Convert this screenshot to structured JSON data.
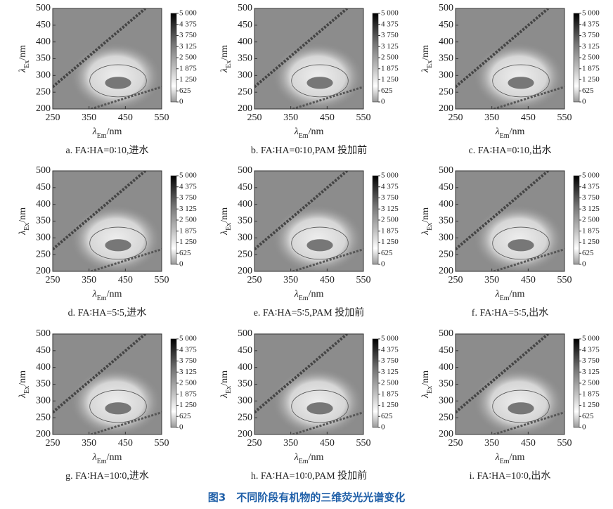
{
  "figure_caption": "图3　不同阶段有机物的三维荧光光谱变化",
  "chart_data": [
    {
      "type": "heatmap",
      "caption": "a. FA∶HA=0∶10,进水",
      "x_label": {
        "symbol": "λ",
        "sub": "Em",
        "unit": "/nm"
      },
      "y_label": {
        "symbol": "λ",
        "sub": "Ex",
        "unit": "/nm"
      },
      "xlim": [
        250,
        550
      ],
      "xticks": [
        250,
        350,
        450,
        550
      ],
      "ylim": [
        200,
        500
      ],
      "yticks": [
        200,
        250,
        300,
        350,
        400,
        450,
        500
      ],
      "clim": [
        0,
        5000
      ],
      "cticks": [
        {
          "value": 5000,
          "label": "5 000"
        },
        {
          "value": 4375,
          "label": "4 375"
        },
        {
          "value": 3750,
          "label": "3 750"
        },
        {
          "value": 3125,
          "label": "3 125"
        },
        {
          "value": 2500,
          "label": "2 500"
        },
        {
          "value": 1875,
          "label": "1 875"
        },
        {
          "value": 1250,
          "label": "1 250"
        },
        625,
        0
      ]
    },
    {
      "type": "heatmap",
      "caption": "b. FA∶HA=0∶10,PAM 投加前",
      "x_label": {
        "symbol": "λ",
        "sub": "Em",
        "unit": "/nm"
      },
      "y_label": {
        "symbol": "λ",
        "sub": "Ex",
        "unit": "/nm"
      },
      "xlim": [
        250,
        550
      ],
      "xticks": [
        250,
        350,
        450,
        550
      ],
      "ylim": [
        200,
        500
      ],
      "yticks": [
        200,
        250,
        300,
        350,
        400,
        450,
        500
      ],
      "clim": [
        0,
        5000
      ],
      "cticks": [
        {
          "value": 5000,
          "label": "5 000"
        },
        {
          "value": 4375,
          "label": "4 375"
        },
        {
          "value": 3750,
          "label": "3 750"
        },
        {
          "value": 3125,
          "label": "3 125"
        },
        {
          "value": 2500,
          "label": "2 500"
        },
        {
          "value": 1875,
          "label": "1 875"
        },
        {
          "value": 1250,
          "label": "1 250"
        },
        625,
        0
      ]
    },
    {
      "type": "heatmap",
      "caption": "c. FA∶HA=0∶10,出水",
      "x_label": {
        "symbol": "λ",
        "sub": "Em",
        "unit": "/nm"
      },
      "y_label": {
        "symbol": "λ",
        "sub": "Ex",
        "unit": "/nm"
      },
      "xlim": [
        250,
        550
      ],
      "xticks": [
        250,
        350,
        450,
        550
      ],
      "ylim": [
        200,
        500
      ],
      "yticks": [
        200,
        250,
        300,
        350,
        400,
        450,
        500
      ],
      "clim": [
        0,
        5000
      ],
      "cticks": [
        {
          "value": 5000,
          "label": "5 000"
        },
        {
          "value": 4375,
          "label": "4 375"
        },
        {
          "value": 3750,
          "label": "3 750"
        },
        {
          "value": 3125,
          "label": "3 125"
        },
        {
          "value": 2500,
          "label": "2 500"
        },
        {
          "value": 1875,
          "label": "1 875"
        },
        {
          "value": 1250,
          "label": "1 250"
        },
        625,
        0
      ]
    },
    {
      "type": "heatmap",
      "caption": "d. FA∶HA=5∶5,进水",
      "x_label": {
        "symbol": "λ",
        "sub": "Em",
        "unit": "/nm"
      },
      "y_label": {
        "symbol": "λ",
        "sub": "Ex",
        "unit": "/nm"
      },
      "xlim": [
        250,
        550
      ],
      "xticks": [
        250,
        350,
        450,
        550
      ],
      "ylim": [
        200,
        500
      ],
      "yticks": [
        200,
        250,
        300,
        350,
        400,
        450,
        500
      ],
      "clim": [
        0,
        5000
      ],
      "cticks": [
        {
          "value": 5000,
          "label": "5 000"
        },
        {
          "value": 4375,
          "label": "4 375"
        },
        {
          "value": 3750,
          "label": "3 750"
        },
        {
          "value": 3125,
          "label": "3 125"
        },
        {
          "value": 2500,
          "label": "2 500"
        },
        {
          "value": 1875,
          "label": "1 875"
        },
        {
          "value": 1250,
          "label": "1 250"
        },
        625,
        0
      ]
    },
    {
      "type": "heatmap",
      "caption": "e. FA∶HA=5∶5,PAM 投加前",
      "x_label": {
        "symbol": "λ",
        "sub": "Em",
        "unit": "/nm"
      },
      "y_label": {
        "symbol": "λ",
        "sub": "Ex",
        "unit": "/nm"
      },
      "xlim": [
        250,
        550
      ],
      "xticks": [
        250,
        350,
        450,
        550
      ],
      "ylim": [
        200,
        500
      ],
      "yticks": [
        200,
        250,
        300,
        350,
        400,
        450,
        500
      ],
      "clim": [
        0,
        5000
      ],
      "cticks": [
        {
          "value": 5000,
          "label": "5 000"
        },
        {
          "value": 4375,
          "label": "4 375"
        },
        {
          "value": 3750,
          "label": "3 750"
        },
        {
          "value": 3125,
          "label": "3 125"
        },
        {
          "value": 2500,
          "label": "2 500"
        },
        {
          "value": 1875,
          "label": "1 875"
        },
        {
          "value": 1250,
          "label": "1 250"
        },
        625,
        0
      ]
    },
    {
      "type": "heatmap",
      "caption": "f. FA∶HA=5∶5,出水",
      "x_label": {
        "symbol": "λ",
        "sub": "Em",
        "unit": "/nm"
      },
      "y_label": {
        "symbol": "λ",
        "sub": "Ex",
        "unit": "/nm"
      },
      "xlim": [
        250,
        550
      ],
      "xticks": [
        250,
        350,
        450,
        550
      ],
      "ylim": [
        200,
        500
      ],
      "yticks": [
        200,
        250,
        300,
        350,
        400,
        450,
        500
      ],
      "clim": [
        0,
        5000
      ],
      "cticks": [
        {
          "value": 5000,
          "label": "5 000"
        },
        {
          "value": 4375,
          "label": "4 375"
        },
        {
          "value": 3750,
          "label": "3 750"
        },
        {
          "value": 3125,
          "label": "3 125"
        },
        {
          "value": 2500,
          "label": "2 500"
        },
        {
          "value": 1875,
          "label": "1 875"
        },
        {
          "value": 1250,
          "label": "1 250"
        },
        625,
        0
      ]
    },
    {
      "type": "heatmap",
      "caption": "g. FA∶HA=10∶0,进水",
      "x_label": {
        "symbol": "λ",
        "sub": "Em",
        "unit": "/nm"
      },
      "y_label": {
        "symbol": "λ",
        "sub": "Ex",
        "unit": "/nm"
      },
      "xlim": [
        250,
        550
      ],
      "xticks": [
        250,
        350,
        450,
        550
      ],
      "ylim": [
        200,
        500
      ],
      "yticks": [
        200,
        250,
        300,
        350,
        400,
        450,
        500
      ],
      "clim": [
        0,
        5000
      ],
      "cticks": [
        {
          "value": 5000,
          "label": "5 000"
        },
        {
          "value": 4375,
          "label": "4 375"
        },
        {
          "value": 3750,
          "label": "3 750"
        },
        {
          "value": 3125,
          "label": "3 125"
        },
        {
          "value": 2500,
          "label": "2 500"
        },
        {
          "value": 1875,
          "label": "1 875"
        },
        {
          "value": 1250,
          "label": "1 250"
        },
        625,
        0
      ]
    },
    {
      "type": "heatmap",
      "caption": "h. FA∶HA=10∶0,PAM 投加前",
      "x_label": {
        "symbol": "λ",
        "sub": "Em",
        "unit": "/nm"
      },
      "y_label": {
        "symbol": "λ",
        "sub": "Ex",
        "unit": "/nm"
      },
      "xlim": [
        250,
        550
      ],
      "xticks": [
        250,
        350,
        450,
        550
      ],
      "ylim": [
        200,
        500
      ],
      "yticks": [
        200,
        250,
        300,
        350,
        400,
        450,
        500
      ],
      "clim": [
        0,
        5000
      ],
      "cticks": [
        {
          "value": 5000,
          "label": "5 000"
        },
        {
          "value": 4375,
          "label": "4 375"
        },
        {
          "value": 3750,
          "label": "3 750"
        },
        {
          "value": 3125,
          "label": "3 125"
        },
        {
          "value": 2500,
          "label": "2 500"
        },
        {
          "value": 1875,
          "label": "1 875"
        },
        {
          "value": 1250,
          "label": "1 250"
        },
        625,
        0
      ]
    },
    {
      "type": "heatmap",
      "caption": "i. FA∶HA=10∶0,出水",
      "x_label": {
        "symbol": "λ",
        "sub": "Em",
        "unit": "/nm"
      },
      "y_label": {
        "symbol": "λ",
        "sub": "Ex",
        "unit": "/nm"
      },
      "xlim": [
        250,
        550
      ],
      "xticks": [
        250,
        350,
        450,
        550
      ],
      "ylim": [
        200,
        500
      ],
      "yticks": [
        200,
        250,
        300,
        350,
        400,
        450,
        500
      ],
      "clim": [
        0,
        5000
      ],
      "cticks": [
        {
          "value": 5000,
          "label": "5 000"
        },
        {
          "value": 4375,
          "label": "4 375"
        },
        {
          "value": 3750,
          "label": "3 750"
        },
        {
          "value": 3125,
          "label": "3 125"
        },
        {
          "value": 2500,
          "label": "2 500"
        },
        {
          "value": 1875,
          "label": "1 875"
        },
        {
          "value": 1250,
          "label": "1 250"
        },
        625,
        0
      ]
    }
  ]
}
